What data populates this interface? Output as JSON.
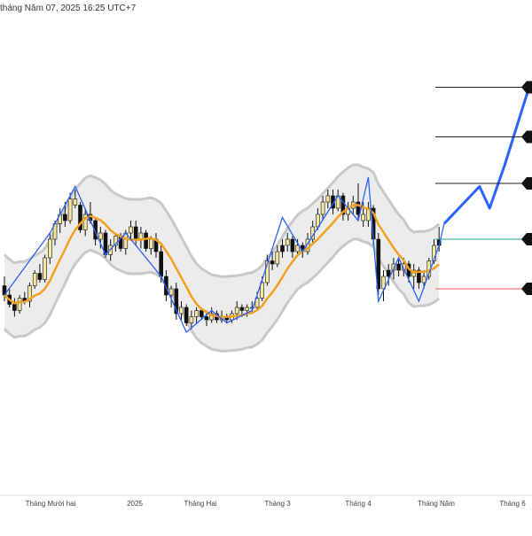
{
  "header": {
    "timestamp": "tháng Năm 07, 2025 16:25 UTC+7"
  },
  "colors": {
    "zigzag": "#2962ff",
    "ma": "#f0a020",
    "band_fill": "#ececec",
    "band_edge": "#c8c8c8",
    "candle_up": "#f5e79e",
    "candle_down": "#111111",
    "level": "#222222",
    "current_level": "#26a69a",
    "stop_level": "#ef5350",
    "marker": "#111111"
  },
  "chart_data": {
    "type": "candlestick",
    "title": "",
    "xlabel": "",
    "ylabel": "",
    "grid": false,
    "x_ticks": [
      "Tháng Mười hai",
      "2025",
      "Tháng Hai",
      "Tháng 3",
      "Tháng 4",
      "Tháng Năm",
      "Tháng 6"
    ],
    "notes": "price scale not printed in screenshot; y values are relative units (0-100)",
    "candles": [
      [
        0,
        1,
        45,
        48,
        40,
        42
      ],
      [
        1,
        1,
        42,
        44,
        38,
        39
      ],
      [
        2,
        1,
        39,
        41,
        35,
        37
      ],
      [
        3,
        0,
        37,
        42,
        36,
        41
      ],
      [
        4,
        1,
        41,
        43,
        39,
        40
      ],
      [
        5,
        0,
        40,
        46,
        38,
        45
      ],
      [
        6,
        0,
        45,
        50,
        44,
        49
      ],
      [
        7,
        1,
        49,
        52,
        46,
        47
      ],
      [
        8,
        0,
        47,
        55,
        46,
        54
      ],
      [
        9,
        0,
        54,
        62,
        52,
        60
      ],
      [
        10,
        0,
        60,
        66,
        58,
        65
      ],
      [
        11,
        0,
        65,
        70,
        62,
        68
      ],
      [
        12,
        1,
        68,
        72,
        64,
        66
      ],
      [
        13,
        0,
        66,
        75,
        65,
        73
      ],
      [
        14,
        0,
        73,
        76,
        70,
        71
      ],
      [
        15,
        1,
        71,
        72,
        62,
        63
      ],
      [
        16,
        0,
        63,
        70,
        61,
        68
      ],
      [
        17,
        1,
        68,
        72,
        65,
        66
      ],
      [
        18,
        1,
        66,
        67,
        58,
        60
      ],
      [
        19,
        0,
        60,
        64,
        57,
        62
      ],
      [
        20,
        1,
        62,
        63,
        54,
        55
      ],
      [
        21,
        0,
        55,
        60,
        53,
        58
      ],
      [
        22,
        0,
        58,
        62,
        56,
        61
      ],
      [
        23,
        1,
        61,
        62,
        56,
        57
      ],
      [
        24,
        0,
        57,
        63,
        55,
        62
      ],
      [
        25,
        0,
        62,
        66,
        60,
        64
      ],
      [
        26,
        1,
        64,
        66,
        58,
        60
      ],
      [
        27,
        0,
        60,
        64,
        57,
        62
      ],
      [
        28,
        1,
        62,
        63,
        56,
        57
      ],
      [
        29,
        0,
        57,
        61,
        55,
        60
      ],
      [
        30,
        1,
        60,
        62,
        54,
        56
      ],
      [
        31,
        1,
        56,
        58,
        46,
        48
      ],
      [
        32,
        1,
        48,
        50,
        40,
        42
      ],
      [
        33,
        0,
        42,
        45,
        38,
        44
      ],
      [
        34,
        1,
        44,
        46,
        34,
        36
      ],
      [
        35,
        0,
        36,
        40,
        34,
        38
      ],
      [
        36,
        1,
        38,
        39,
        32,
        33
      ],
      [
        37,
        0,
        33,
        37,
        31,
        35
      ],
      [
        38,
        0,
        35,
        38,
        33,
        37
      ],
      [
        39,
        1,
        37,
        38,
        34,
        35
      ],
      [
        40,
        1,
        35,
        37,
        32,
        34
      ],
      [
        41,
        0,
        34,
        38,
        33,
        36
      ],
      [
        42,
        1,
        36,
        37,
        33,
        34
      ],
      [
        43,
        0,
        34,
        37,
        33,
        35
      ],
      [
        44,
        1,
        35,
        36,
        33,
        34
      ],
      [
        45,
        0,
        34,
        37,
        33,
        36
      ],
      [
        46,
        0,
        36,
        40,
        34,
        38
      ],
      [
        47,
        1,
        38,
        39,
        35,
        37
      ],
      [
        48,
        0,
        37,
        39,
        35,
        38
      ],
      [
        49,
        0,
        38,
        40,
        36,
        38
      ],
      [
        50,
        0,
        38,
        43,
        37,
        41
      ],
      [
        51,
        0,
        41,
        48,
        40,
        46
      ],
      [
        52,
        0,
        46,
        55,
        45,
        53
      ],
      [
        53,
        1,
        53,
        56,
        50,
        52
      ],
      [
        54,
        0,
        52,
        58,
        51,
        56
      ],
      [
        55,
        1,
        56,
        60,
        54,
        58
      ],
      [
        56,
        0,
        58,
        62,
        56,
        60
      ],
      [
        57,
        1,
        60,
        61,
        54,
        56
      ],
      [
        58,
        0,
        56,
        60,
        55,
        58
      ],
      [
        59,
        1,
        58,
        59,
        54,
        56
      ],
      [
        60,
        0,
        56,
        62,
        55,
        60
      ],
      [
        61,
        0,
        60,
        66,
        59,
        64
      ],
      [
        62,
        0,
        64,
        70,
        63,
        68
      ],
      [
        63,
        0,
        68,
        74,
        66,
        72
      ],
      [
        64,
        0,
        72,
        76,
        70,
        74
      ],
      [
        65,
        1,
        74,
        76,
        68,
        70
      ],
      [
        66,
        0,
        70,
        76,
        69,
        74
      ],
      [
        67,
        1,
        74,
        75,
        66,
        68
      ],
      [
        68,
        0,
        68,
        72,
        66,
        70
      ],
      [
        69,
        0,
        70,
        74,
        68,
        72
      ],
      [
        70,
        1,
        72,
        78,
        66,
        68
      ],
      [
        71,
        0,
        68,
        72,
        64,
        66
      ],
      [
        72,
        0,
        66,
        72,
        64,
        70
      ],
      [
        73,
        1,
        70,
        71,
        58,
        60
      ],
      [
        74,
        1,
        60,
        62,
        42,
        44
      ],
      [
        75,
        0,
        44,
        50,
        40,
        48
      ],
      [
        76,
        1,
        48,
        52,
        45,
        50
      ],
      [
        77,
        0,
        50,
        54,
        47,
        52
      ],
      [
        78,
        1,
        52,
        54,
        48,
        50
      ],
      [
        79,
        0,
        50,
        54,
        48,
        52
      ],
      [
        80,
        1,
        52,
        53,
        46,
        48
      ],
      [
        81,
        0,
        48,
        52,
        44,
        50
      ],
      [
        82,
        1,
        50,
        51,
        44,
        46
      ],
      [
        83,
        0,
        46,
        50,
        44,
        48
      ],
      [
        84,
        0,
        48,
        54,
        47,
        53
      ],
      [
        85,
        0,
        53,
        60,
        52,
        58
      ],
      [
        86,
        1,
        58,
        64,
        56,
        60
      ]
    ],
    "zigzag": [
      [
        0,
        42
      ],
      [
        9,
        62
      ],
      [
        14,
        77
      ],
      [
        20,
        55
      ],
      [
        24,
        62
      ],
      [
        31,
        48
      ],
      [
        36,
        30
      ],
      [
        41,
        37
      ],
      [
        44,
        33
      ],
      [
        49,
        37
      ],
      [
        55,
        67
      ],
      [
        59,
        56
      ],
      [
        66,
        74
      ],
      [
        70,
        66
      ],
      [
        72,
        80
      ],
      [
        74,
        40
      ],
      [
        78,
        54
      ],
      [
        82,
        40
      ],
      [
        86,
        58
      ],
      [
        87,
        65
      ],
      [
        94,
        77
      ],
      [
        96,
        70
      ],
      [
        99,
        84
      ],
      [
        104,
        110
      ]
    ],
    "levels": [
      {
        "y": 109,
        "kind": "target"
      },
      {
        "y": 93,
        "kind": "target"
      },
      {
        "y": 78,
        "kind": "target"
      },
      {
        "y": 60,
        "kind": "current"
      },
      {
        "y": 44,
        "kind": "stop"
      }
    ]
  }
}
